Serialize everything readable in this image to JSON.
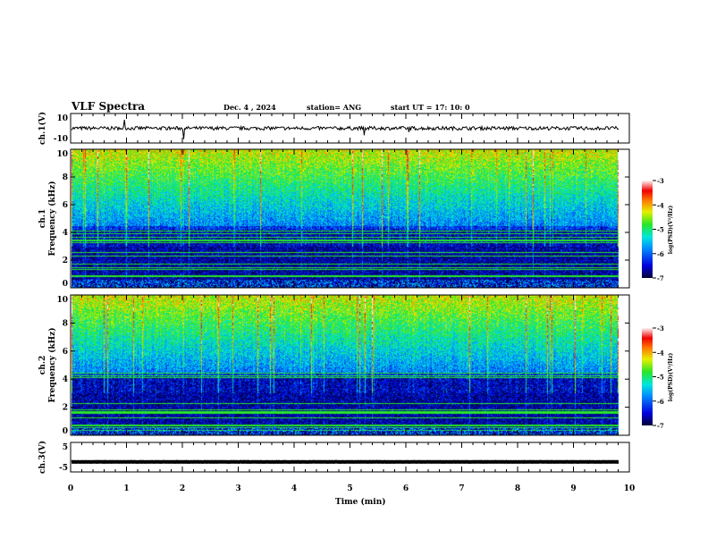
{
  "chart_data": {
    "type": "heatmap",
    "title": "VLF Spectra",
    "date": "Dec. 4 , 2024",
    "station": "station= ANG",
    "start": "start  UT =   17: 10: 0",
    "xlabel": "Time  (min)",
    "xlim": [
      0,
      10
    ],
    "xticks": [
      "0",
      "1",
      "2",
      "3",
      "4",
      "5",
      "6",
      "7",
      "8",
      "9",
      "10"
    ],
    "panels": [
      {
        "name": "ch1-waveform",
        "ylabel": "ch.1(V)",
        "ylim": [
          -10,
          10
        ],
        "yticks": [
          "10",
          "-10"
        ],
        "type": "line",
        "level": 0,
        "noise": 1.2
      },
      {
        "name": "ch1-spectrogram",
        "ylabel": "ch.1\nFrequency (kHz)",
        "ylim": [
          0,
          10
        ],
        "yticks": [
          "0",
          "2",
          "4",
          "6",
          "8",
          "10"
        ],
        "type": "heatmap",
        "colorbar": {
          "label": "log(PSD)(V²/Hz)",
          "range": [
            -7,
            -3
          ],
          "ticks": [
            "-3",
            "-4",
            "-5",
            "-6",
            "-7"
          ]
        }
      },
      {
        "name": "ch2-spectrogram",
        "ylabel": "ch.2\nFrequency (kHz)",
        "ylim": [
          0,
          10
        ],
        "yticks": [
          "0",
          "2",
          "4",
          "6",
          "8",
          "10"
        ],
        "type": "heatmap",
        "colorbar": {
          "label": "log(PSD)(V²/Hz)",
          "range": [
            -7,
            -3
          ],
          "ticks": [
            "-3",
            "-4",
            "-5",
            "-6",
            "-7"
          ]
        }
      },
      {
        "name": "ch3-waveform",
        "ylabel": "ch.3(V)",
        "ylim": [
          -5,
          5
        ],
        "yticks": [
          "5",
          "-5"
        ],
        "type": "line",
        "level": -1.6,
        "noise": 0.05
      }
    ]
  }
}
